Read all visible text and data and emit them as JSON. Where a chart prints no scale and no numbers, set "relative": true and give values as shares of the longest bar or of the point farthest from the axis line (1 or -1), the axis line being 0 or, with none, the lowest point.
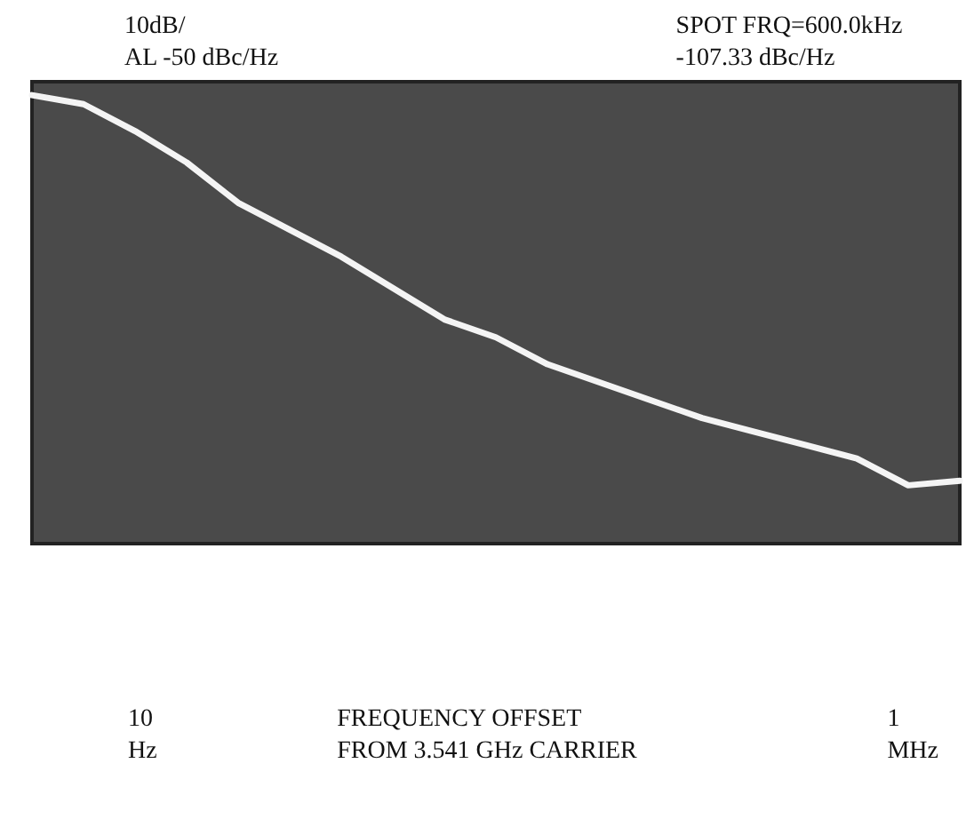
{
  "chart_data": {
    "type": "line",
    "relative": true,
    "grid": false,
    "marker": "none",
    "line_style": "solid",
    "annotations": [
      "10dB/\nAL -50 dBc/Hz",
      "SPOT FRQ=600.0kHz\n-107.33 dBc/Hz",
      "10\nHz",
      "1\nMHz",
      "FREQUENCY OFFSET\nFROM 3.541 GHz CARRIER"
    ],
    "categories": [
      null,
      null,
      null,
      null,
      null,
      null,
      null,
      null,
      null,
      null,
      null,
      null,
      null,
      null,
      null,
      null,
      null,
      null,
      null
    ],
    "series": [
      {
        "color": "#f4f4f4",
        "values": [
          1,
          0.98,
          0.92,
          0.85,
          0.76,
          0.7,
          0.64,
          0.57,
          0.5,
          0.46,
          0.4,
          0.36,
          0.32,
          0.28,
          0.25,
          0.22,
          0.19,
          0.13,
          0.14
        ]
      }
    ]
  }
}
